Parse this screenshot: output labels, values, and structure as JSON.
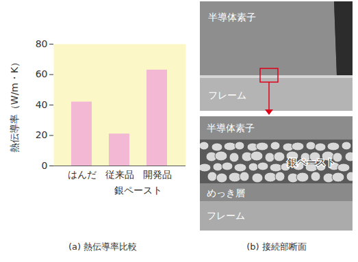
{
  "chart_data": {
    "type": "bar",
    "title": "(a) 熱伝導率比較",
    "categories": [
      "はんだ",
      "従来品",
      "開発品"
    ],
    "values": [
      42,
      21,
      63
    ],
    "color": "#f3b8d3",
    "y_label": "熱伝導率（W/m・K）",
    "ylim": [
      0,
      80
    ],
    "yticks": [
      0,
      20,
      40,
      60,
      80
    ],
    "grid": false,
    "annotations": [
      {
        "text": "銀ペースト",
        "categories": [
          "従来品",
          "開発品"
        ]
      }
    ]
  },
  "cross_section": {
    "caption": "(b) 接続部断面",
    "overview": {
      "labels": [
        "半導体素子",
        "フレーム"
      ]
    },
    "closeup": {
      "layers": [
        "半導体素子",
        "銀ペースト",
        "めっき層",
        "フレーム"
      ]
    }
  }
}
